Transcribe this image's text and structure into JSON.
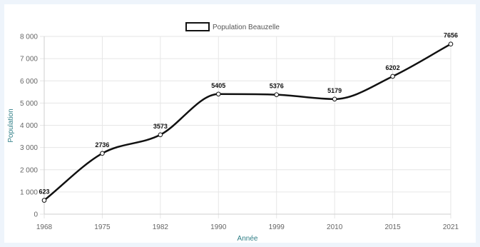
{
  "chart_data": {
    "type": "line",
    "x": [
      "1968",
      "1975",
      "1982",
      "1990",
      "1999",
      "2010",
      "2015",
      "2021"
    ],
    "series": [
      {
        "name": "Population Beauzelle",
        "values": [
          623,
          2736,
          3573,
          5405,
          5376,
          5179,
          6202,
          7656
        ]
      }
    ],
    "data_labels": [
      "623",
      "2736",
      "3573",
      "5405",
      "5376",
      "5179",
      "6202",
      "7656"
    ],
    "xlabel": "Année",
    "ylabel": "Population",
    "ylim": [
      0,
      8000
    ],
    "yticks": [
      0,
      1000,
      2000,
      3000,
      4000,
      5000,
      6000,
      7000,
      8000
    ],
    "ytick_labels": [
      "0",
      "1 000",
      "2 000",
      "3 000",
      "4 000",
      "5 000",
      "6 000",
      "7 000",
      "8 000"
    ],
    "grid": true,
    "legend_position": "top-center",
    "line_color": "#111111",
    "point_fill": "#ffffff",
    "grid_color": "#e6e6e6",
    "axis_title_color": "#2f7e86",
    "frame_color": "#eef4fb"
  }
}
